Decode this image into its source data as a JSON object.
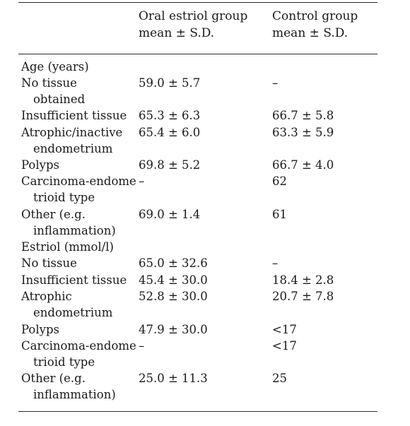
{
  "header": {
    "col2_line1": "Oral estriol group",
    "col2_line2": "mean ± S.D.",
    "col3_line1": "Control group",
    "col3_line2": "mean ± S.D."
  },
  "rows": [
    {
      "label": "Age (years)",
      "label2": "",
      "oral": "",
      "control": ""
    },
    {
      "label": "No tissue",
      "label2": "obtained",
      "oral": "59.0 ± 5.7",
      "control": "–"
    },
    {
      "label": "Insufficient tissue",
      "label2": "",
      "oral": "65.3 ± 6.3",
      "control": "66.7 ± 5.8"
    },
    {
      "label": "Atrophic/inactive",
      "label2": "endometrium",
      "oral": "65.4 ± 6.0",
      "control": "63.3 ± 5.9"
    },
    {
      "label": "Polyps",
      "label2": "",
      "oral": "69.8 ± 5.2",
      "control": "66.7 ± 4.0"
    },
    {
      "label": "Carcinoma-endome",
      "label2": "trioid type",
      "oral": "–",
      "control": "62"
    },
    {
      "label": "Other (e.g.",
      "label2": "inflammation)",
      "oral": "69.0 ± 1.4",
      "control": "61"
    },
    {
      "label": "Estriol (mmol/l)",
      "label2": "",
      "oral": "",
      "control": ""
    },
    {
      "label": "No tissue",
      "label2": "",
      "oral": "65.0 ± 32.6",
      "control": "–"
    },
    {
      "label": "Insufficient tissue",
      "label2": "",
      "oral": "45.4 ± 30.0",
      "control": "18.4 ± 2.8"
    },
    {
      "label": "Atrophic",
      "label2": "endometrium",
      "oral": "52.8 ± 30.0",
      "control": "20.7 ± 7.8"
    },
    {
      "label": "Polyps",
      "label2": "",
      "oral": "47.9 ± 30.0",
      "control": "<17"
    },
    {
      "label": "Carcinoma-endome",
      "label2": "trioid type",
      "oral": "–",
      "control": "<17"
    },
    {
      "label": "Other (e.g.",
      "label2": "inflammation)",
      "oral": "25.0 ± 11.3",
      "control": "25"
    }
  ]
}
